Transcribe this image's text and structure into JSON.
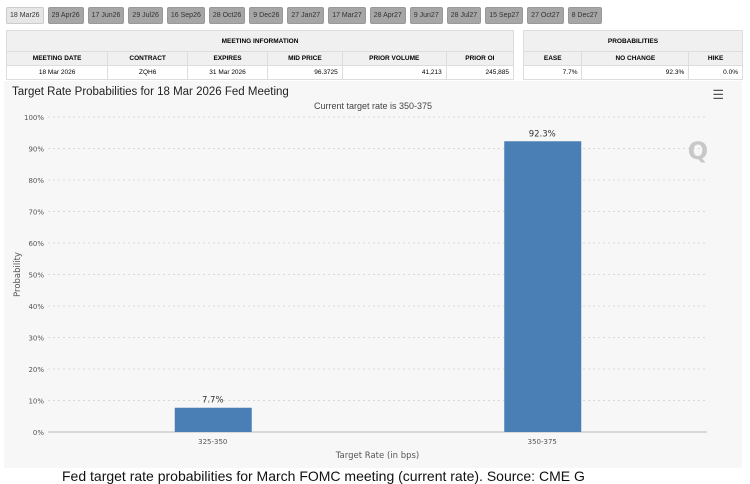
{
  "tabs": [
    "18 Mar26",
    "29 Apr26",
    "17 Jun26",
    "29 Jul26",
    "16 Sep26",
    "28 Oct26",
    "9 Dec26",
    "27 Jan27",
    "17 Mar27",
    "28 Apr27",
    "9 Jun27",
    "28 Jul27",
    "15 Sep27",
    "27 Oct27",
    "8 Dec27"
  ],
  "meeting": {
    "heading": "MEETING INFORMATION",
    "headers": [
      "MEETING DATE",
      "CONTRACT",
      "EXPIRES",
      "MID PRICE",
      "PRIOR VOLUME",
      "PRIOR OI"
    ],
    "values": [
      "18 Mar 2026",
      "ZQH6",
      "31 Mar 2026",
      "96.3725",
      "41,213",
      "245,885"
    ]
  },
  "probabilities": {
    "heading": "PROBABILITIES",
    "headers": [
      "EASE",
      "NO CHANGE",
      "HIKE"
    ],
    "values": [
      "7.7%",
      "92.3%",
      "0.0%"
    ]
  },
  "chart_data": {
    "type": "bar",
    "title": "Target Rate Probabilities for 18 Mar 2026 Fed Meeting",
    "subtitle": "Current target rate is 350-375",
    "xlabel": "Target Rate (in bps)",
    "ylabel": "Probability",
    "categories": [
      "325-350",
      "350-375"
    ],
    "values": [
      7.7,
      92.3
    ],
    "data_labels": [
      "7.7%",
      "92.3%"
    ],
    "ylim": [
      0,
      100
    ],
    "yticks": [
      "0%",
      "10%",
      "20%",
      "30%",
      "40%",
      "50%",
      "60%",
      "70%",
      "80%",
      "90%",
      "100%"
    ],
    "color": "#4a7fb5",
    "grid": true
  },
  "caption": "Fed target rate probabilities for March FOMC meeting (current rate). Source: CME G"
}
